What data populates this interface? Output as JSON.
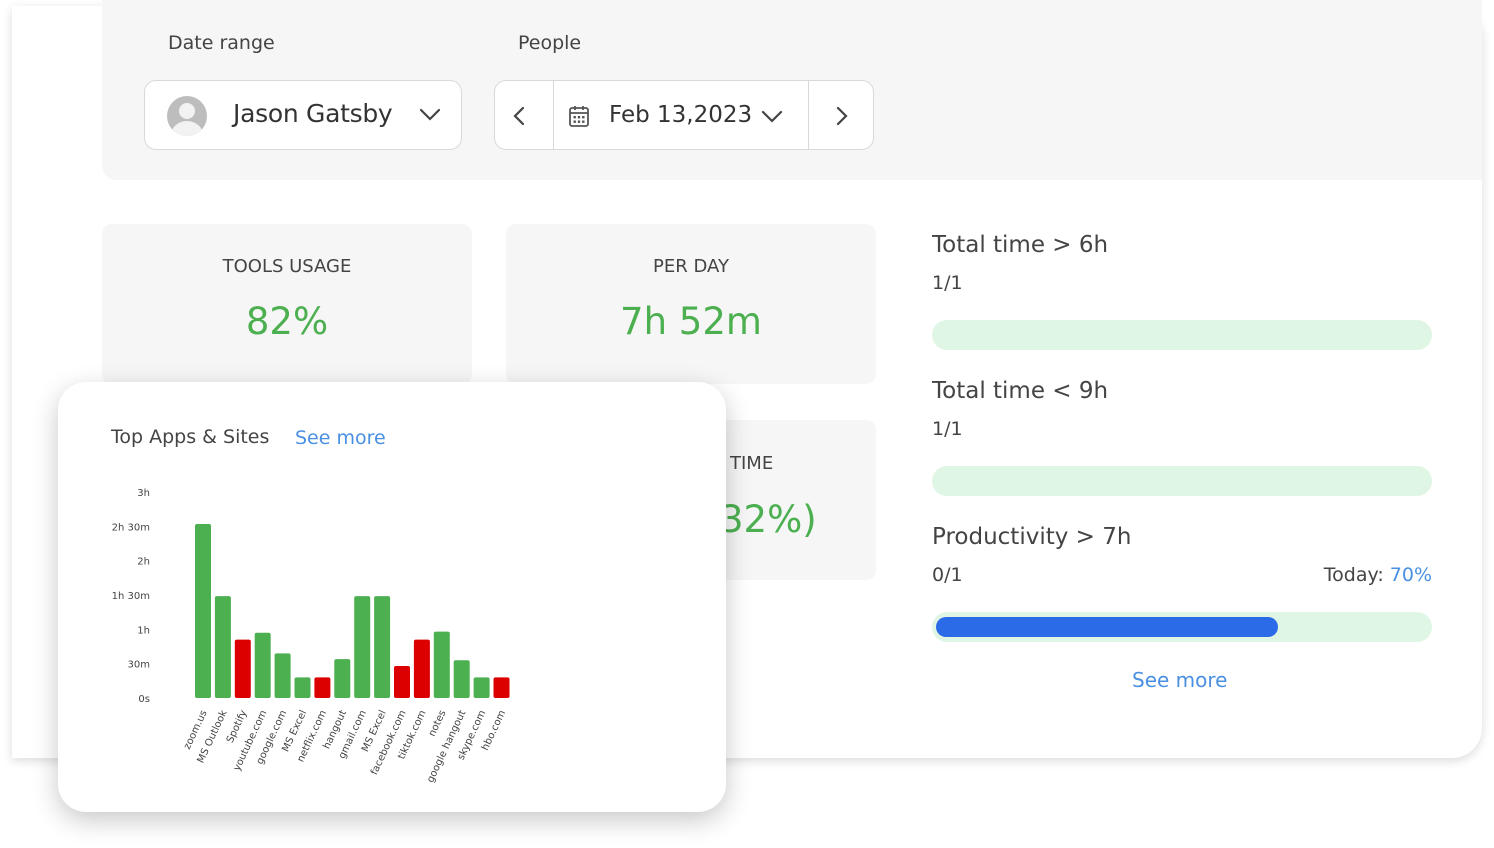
{
  "filters": {
    "date_range_label": "Date range",
    "people_label": "People",
    "person_name": "Jason Gatsby",
    "date_value": "Feb 13,2023"
  },
  "stats": {
    "tools_usage": {
      "label": "TOOLS USAGE",
      "value": "82%"
    },
    "per_day": {
      "label": "PER DAY",
      "value": "7h 52m"
    },
    "partial": {
      "label": "TIME",
      "value": "32%)"
    }
  },
  "goals": [
    {
      "title": "Total time > 6h",
      "count": "1/1",
      "progress": 1.0
    },
    {
      "title": "Total time < 9h",
      "count": "1/1",
      "progress": 1.0
    },
    {
      "title": "Productivity > 7h",
      "count": "0/1",
      "progress": 0.7
    }
  ],
  "today": {
    "label": "Today:",
    "value": "70%"
  },
  "see_more": "See more",
  "apps_card": {
    "title": "Top Apps & Sites",
    "see_more": "See more"
  },
  "colors": {
    "productive": "#4caf50",
    "unproductive": "#dd0000",
    "accent": "#2b6be8",
    "link": "#4a90e2"
  },
  "chart_data": {
    "type": "bar",
    "title": "Top Apps & Sites",
    "categories": [
      "zoom.us",
      "MS Outlook",
      "Spotify",
      "youtube.com",
      "google.com",
      "MS Excel",
      "netflix.com",
      "hangout",
      "gmail.com",
      "MS Excel",
      "facebook.com",
      "tiktok.com",
      "notes",
      "google hangout",
      "skype.com",
      "hbo.com"
    ],
    "values": [
      152,
      89,
      51,
      57,
      39,
      18,
      18,
      34,
      89,
      89,
      28,
      51,
      58,
      33,
      18,
      18
    ],
    "unit": "minutes",
    "bar_status": [
      "productive",
      "productive",
      "unproductive",
      "productive",
      "productive",
      "productive",
      "unproductive",
      "productive",
      "productive",
      "productive",
      "unproductive",
      "unproductive",
      "productive",
      "productive",
      "productive",
      "unproductive"
    ],
    "y_ticks": [
      "0s",
      "30m",
      "1h",
      "1h 30m",
      "2h",
      "2h 30m",
      "3h"
    ],
    "ylim": [
      0,
      180
    ],
    "grid": false
  }
}
